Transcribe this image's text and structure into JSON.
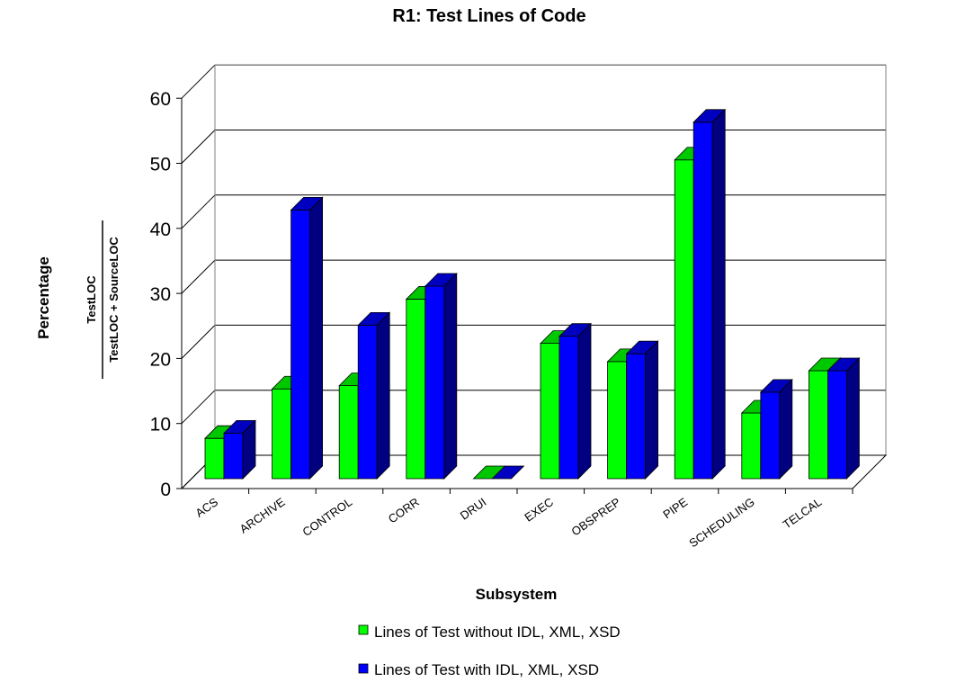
{
  "chart_data": {
    "type": "bar",
    "title": "R1: Test Lines of Code",
    "xlabel": "Subsystem",
    "ylabel": "Percentage",
    "ylabel_fraction": {
      "numerator": "TestLOC",
      "denominator": "TestLOC + SourceLOC"
    },
    "categories": [
      "ACS",
      "ARCHIVE",
      "CONTROL",
      "CORR",
      "DRUI",
      "EXEC",
      "OBSPREP",
      "PIPE",
      "SCHEDULING",
      "TELCAL"
    ],
    "series": [
      {
        "name": "Lines of Test without IDL, XML, XSD",
        "color": "#00ff00",
        "side_color": "#00a000",
        "top_color": "#00c800",
        "values": [
          6.2,
          13.8,
          14.3,
          27.6,
          0,
          20.8,
          18,
          49,
          10.1,
          16.6
        ]
      },
      {
        "name": "Lines of Test with IDL, XML, XSD",
        "color": "#0000ff",
        "side_color": "#000080",
        "top_color": "#0000c0",
        "values": [
          7,
          41.3,
          23.6,
          29.6,
          0,
          21.9,
          19.2,
          54.8,
          13.3,
          16.6
        ]
      }
    ],
    "yticks": [
      "0",
      "10",
      "20",
      "30",
      "40",
      "50",
      "60"
    ],
    "ylim": [
      0,
      60
    ],
    "grid": true,
    "legend_position": "bottom"
  }
}
